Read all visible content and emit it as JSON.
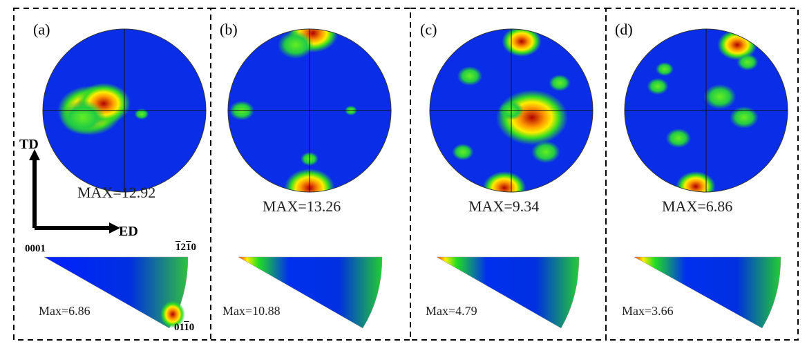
{
  "panels": [
    {
      "label": "(a)",
      "pf_max": "MAX=12.92",
      "ipf_max": "Max=6.86"
    },
    {
      "label": "(b)",
      "pf_max": "MAX=13.26",
      "ipf_max": "Max=10.88"
    },
    {
      "label": "(c)",
      "pf_max": "MAX=9.34",
      "ipf_max": "Max=4.79"
    },
    {
      "label": "(d)",
      "pf_max": "MAX=6.86",
      "ipf_max": "Max=3.66"
    }
  ],
  "axes": {
    "td": "TD",
    "ed": "ED"
  },
  "ipf_corners": {
    "c0001": "0001",
    "c1210": "1210",
    "c0110": "0110"
  },
  "colors": {
    "low": "#0a2ee8",
    "mid": "#22dd22",
    "high": "#ff2200",
    "peak": "#b00000"
  }
}
